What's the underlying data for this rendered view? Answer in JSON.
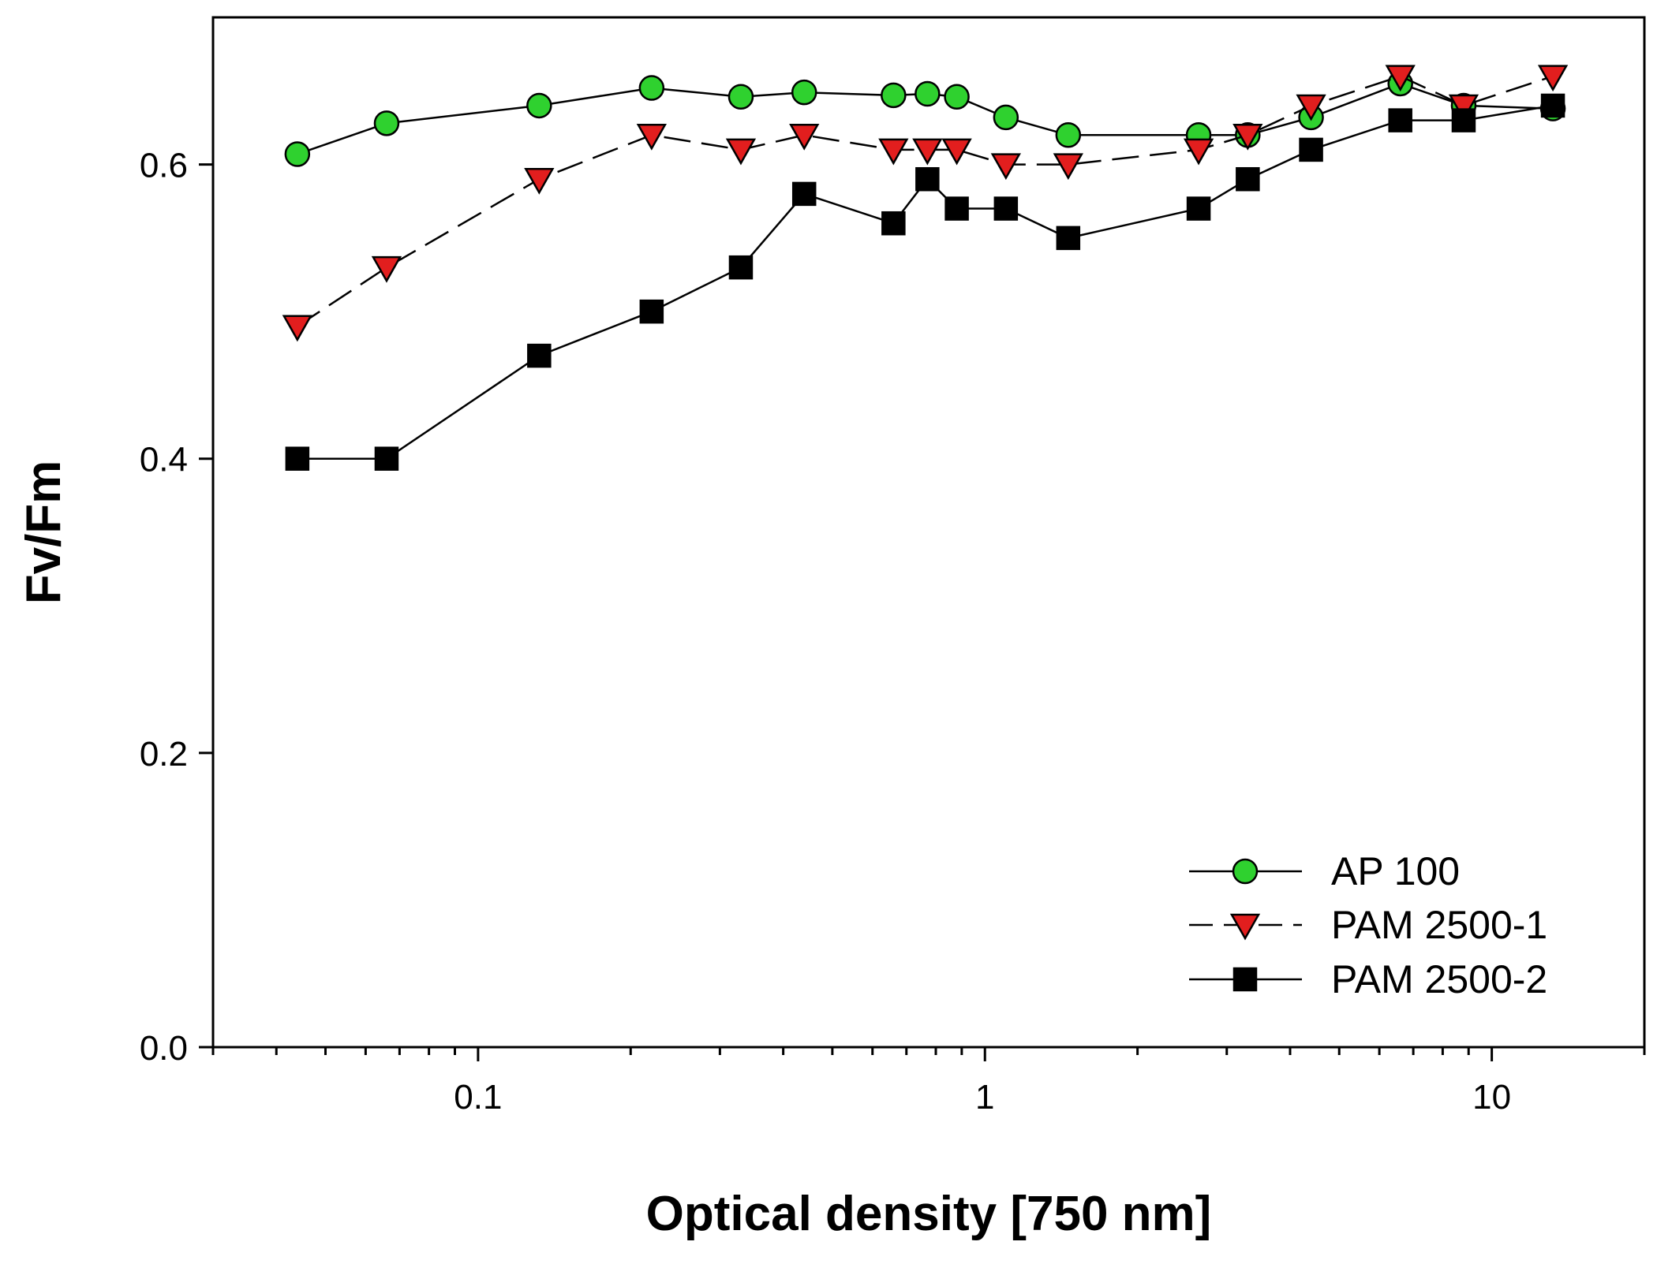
{
  "chart_data": {
    "type": "line",
    "title": "",
    "xlabel": "Optical density [750 nm]",
    "ylabel": "Fv/Fm",
    "xscale": "log",
    "xlim": [
      0.03,
      20
    ],
    "ylim": [
      0.0,
      0.7
    ],
    "x_ticks": [
      0.1,
      1,
      10
    ],
    "x_tick_labels": [
      "0.1",
      "1",
      "10"
    ],
    "y_ticks": [
      0.0,
      0.2,
      0.4,
      0.6
    ],
    "y_tick_labels": [
      "0.0",
      "0.2",
      "0.4",
      "0.6"
    ],
    "grid": false,
    "legend_position": "bottom-right",
    "series": [
      {
        "name": "AP 100",
        "marker": "circle",
        "line_style": "solid",
        "color": "#2fd12f",
        "x": [
          0.044,
          0.066,
          0.132,
          0.22,
          0.33,
          0.44,
          0.66,
          0.77,
          0.88,
          1.1,
          1.46,
          2.64,
          3.3,
          4.4,
          6.6,
          8.8,
          13.2
        ],
        "y": [
          0.607,
          0.628,
          0.64,
          0.652,
          0.646,
          0.649,
          0.647,
          0.648,
          0.646,
          0.632,
          0.62,
          0.62,
          0.62,
          0.632,
          0.655,
          0.64,
          0.638
        ]
      },
      {
        "name": "PAM 2500-1",
        "marker": "triangle-down",
        "line_style": "dashed",
        "color": "#e21e1e",
        "x": [
          0.044,
          0.066,
          0.132,
          0.22,
          0.33,
          0.44,
          0.66,
          0.77,
          0.88,
          1.1,
          1.46,
          2.64,
          3.3,
          4.4,
          6.6,
          8.8,
          13.2
        ],
        "y": [
          0.49,
          0.53,
          0.59,
          0.62,
          0.61,
          0.62,
          0.61,
          0.61,
          0.61,
          0.6,
          0.6,
          0.61,
          0.62,
          0.64,
          0.66,
          0.64,
          0.66
        ]
      },
      {
        "name": "PAM 2500-2",
        "marker": "square",
        "line_style": "solid",
        "color": "#000000",
        "x": [
          0.044,
          0.066,
          0.132,
          0.22,
          0.33,
          0.44,
          0.66,
          0.77,
          0.88,
          1.1,
          1.46,
          2.64,
          3.3,
          4.4,
          6.6,
          8.8,
          13.2
        ],
        "y": [
          0.4,
          0.4,
          0.47,
          0.5,
          0.53,
          0.58,
          0.56,
          0.59,
          0.57,
          0.57,
          0.55,
          0.57,
          0.59,
          0.61,
          0.63,
          0.63,
          0.64
        ]
      }
    ]
  }
}
